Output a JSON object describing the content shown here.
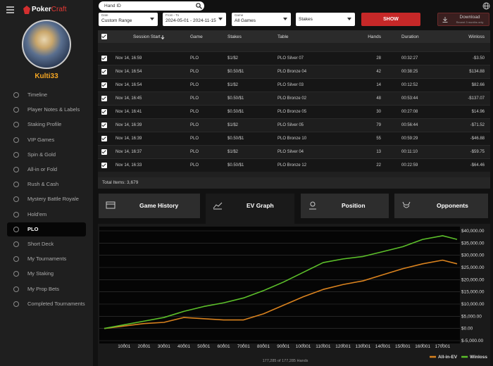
{
  "brand": {
    "first": "Poker",
    "second": "Craft"
  },
  "profile": {
    "username": "Kulti33"
  },
  "menu": [
    {
      "label": "Timeline"
    },
    {
      "label": "Player Notes & Labels"
    },
    {
      "label": "Staking Profile"
    },
    {
      "label": "VIP Games"
    },
    {
      "label": "Spin & Gold"
    },
    {
      "label": "All-in or Fold"
    },
    {
      "label": "Rush & Cash"
    },
    {
      "label": "Mystery Battle Royale"
    },
    {
      "label": "Hold'em"
    },
    {
      "label": "PLO",
      "active": true
    },
    {
      "label": "Short Deck"
    },
    {
      "label": "My Tournaments"
    },
    {
      "label": "My Staking"
    },
    {
      "label": "My Prop Bets"
    },
    {
      "label": "Completed Tournaments"
    }
  ],
  "search": {
    "placeholder": "Hand ID"
  },
  "filters": [
    {
      "label": "Date",
      "value": "Custom Range"
    },
    {
      "label": "From - To",
      "value": "2024-05-01 - 2024-11-15"
    },
    {
      "label": "Game",
      "value": "All Games"
    },
    {
      "value": "Stakes"
    }
  ],
  "show_button": "SHOW",
  "download": {
    "label": "Download",
    "note": "Recent 3 months only"
  },
  "table": {
    "columns": [
      "Session Start",
      "Game",
      "Stakes",
      "Table",
      "Hands",
      "Duration",
      "Winloss"
    ],
    "rows": [
      [
        "Nov 14, 16:59",
        "PLO",
        "$1/$2",
        "PLO Silver 07",
        28,
        "00:32:27",
        "-$3.50"
      ],
      [
        "Nov 14, 16:54",
        "PLO",
        "$0.50/$1",
        "PLO Bronze 04",
        42,
        "00:38:25",
        "$134.88"
      ],
      [
        "Nov 14, 16:54",
        "PLO",
        "$1/$2",
        "PLO Silver 03",
        14,
        "00:12:52",
        "$82.66"
      ],
      [
        "Nov 14, 16:45",
        "PLO",
        "$0.50/$1",
        "PLO Bronze 02",
        48,
        "00:53:44",
        "-$137.07"
      ],
      [
        "Nov 14, 16:41",
        "PLO",
        "$0.50/$1",
        "PLO Bronze 05",
        30,
        "00:27:08",
        "$14.96"
      ],
      [
        "Nov 14, 16:39",
        "PLO",
        "$1/$2",
        "PLO Silver 05",
        79,
        "00:56:44",
        "-$71.52"
      ],
      [
        "Nov 14, 16:39",
        "PLO",
        "$0.50/$1",
        "PLO Bronze 10",
        55,
        "00:59:29",
        "-$46.88"
      ],
      [
        "Nov 14, 16:37",
        "PLO",
        "$1/$2",
        "PLO Silver 04",
        13,
        "00:11:10",
        "-$59.75"
      ],
      [
        "Nov 14, 16:33",
        "PLO",
        "$0.50/$1",
        "PLO Bronze 12",
        22,
        "00:22:59",
        "-$64.46"
      ]
    ],
    "total": "Total Items: 3,679"
  },
  "tabs": [
    {
      "label": "Game History"
    },
    {
      "label": "EV Graph",
      "active": true
    },
    {
      "label": "Position"
    },
    {
      "label": "Opponents"
    }
  ],
  "chart_data": {
    "type": "line",
    "x": [
      0,
      10000,
      20000,
      30000,
      40000,
      50000,
      60000,
      70000,
      80000,
      90000,
      100000,
      110000,
      120000,
      130000,
      140000,
      150000,
      160000,
      170000,
      177285
    ],
    "series": [
      {
        "name": "All-in-EV",
        "color": "#d9821e",
        "values": [
          0,
          1000,
          2000,
          2500,
          4500,
          4000,
          3500,
          3500,
          6000,
          9500,
          13000,
          16000,
          18000,
          19500,
          22000,
          24500,
          26500,
          28000,
          26500
        ]
      },
      {
        "name": "Winloss",
        "color": "#5cbf2a",
        "values": [
          0,
          1500,
          3000,
          4500,
          7000,
          9000,
          10500,
          12500,
          15500,
          19000,
          23000,
          27000,
          28500,
          29500,
          31500,
          33500,
          36500,
          38000,
          36500
        ]
      }
    ],
    "xlim": [
      0,
      177285
    ],
    "ylim": [
      -5000,
      40000
    ],
    "xticks": [
      10001,
      20001,
      30001,
      40001,
      50001,
      60001,
      70001,
      80001,
      90001,
      100001,
      110001,
      120001,
      130001,
      140001,
      150001,
      160001,
      170001
    ],
    "yticks": [
      {
        "value": -5000,
        "label": "$-5,000.00"
      },
      {
        "value": 0,
        "label": "$0.00"
      },
      {
        "value": 5000,
        "label": "$5,000.00"
      },
      {
        "value": 10000,
        "label": "$10,000.00"
      },
      {
        "value": 15000,
        "label": "$15,000.00"
      },
      {
        "value": 20000,
        "label": "$20,000.00"
      },
      {
        "value": 25000,
        "label": "$25,000.00"
      },
      {
        "value": 30000,
        "label": "$30,000.00"
      },
      {
        "value": 35000,
        "label": "$35,000.00"
      },
      {
        "value": 40000,
        "label": "$40,000.00"
      }
    ],
    "grid": true,
    "legend": "bottom-right",
    "footer": "177,285 of 177,285 Hands"
  }
}
